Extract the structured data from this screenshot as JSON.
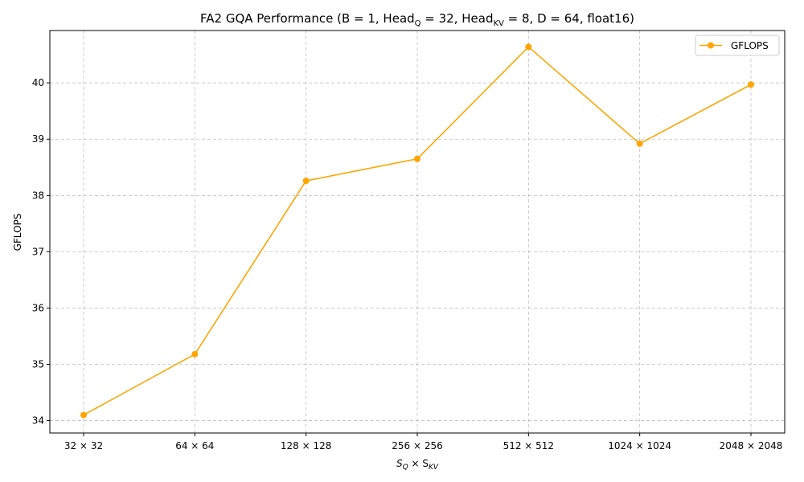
{
  "chart_data": {
    "type": "line",
    "title_main": "FA2 GQA Performance (B = 1, Head",
    "title_sub_q": "Q",
    "title_mid": " = 32, Head",
    "title_sub_kv": "KV",
    "title_end": " = 8, D = 64, float16)",
    "xlabel_s": "S",
    "xlabel_sub_q": "Q",
    "xlabel_times": " × S",
    "xlabel_sub_kv": "KV",
    "ylabel": "GFLOPS",
    "categories": [
      "32 × 32",
      "64 × 64",
      "128 × 128",
      "256 × 256",
      "512 × 512",
      "1024 × 1024",
      "2048 × 2048"
    ],
    "series": [
      {
        "name": "GFLOPS",
        "color": "#FFA500",
        "values": [
          34.1,
          35.18,
          38.26,
          38.65,
          40.64,
          38.92,
          39.97
        ]
      }
    ],
    "yticks": [
      "34",
      "35",
      "36",
      "37",
      "38",
      "39",
      "40"
    ],
    "ylim": [
      33.78,
      40.93
    ],
    "grid": true,
    "legend_position": "top-right"
  }
}
